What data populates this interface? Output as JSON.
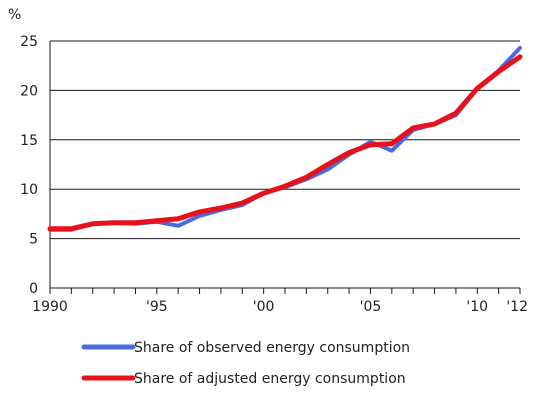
{
  "chart_data": {
    "type": "line",
    "title": "",
    "ylabel": "%",
    "xlabel": "",
    "ylim": [
      0,
      25
    ],
    "xlim": [
      1990,
      2012
    ],
    "y_ticks": [
      0,
      5,
      10,
      15,
      20,
      25
    ],
    "x_ticks": [
      {
        "value": 1990,
        "label": "1990"
      },
      {
        "value": 1995,
        "label": "'95"
      },
      {
        "value": 2000,
        "label": "'00"
      },
      {
        "value": 2005,
        "label": "'05"
      },
      {
        "value": 2010,
        "label": "'10"
      },
      {
        "value": 2012,
        "label": "'12"
      }
    ],
    "grid": "horizontal",
    "legend_position": "bottom",
    "x": [
      1990,
      1991,
      1992,
      1993,
      1994,
      1995,
      1996,
      1997,
      1998,
      1999,
      2000,
      2001,
      2002,
      2003,
      2004,
      2005,
      2006,
      2007,
      2008,
      2009,
      2010,
      2011,
      2012
    ],
    "series": [
      {
        "name": "Share of observed energy consumption",
        "color": "#4a6be0",
        "values": [
          5.9,
          5.9,
          6.5,
          6.6,
          6.5,
          6.7,
          6.3,
          7.3,
          7.9,
          8.4,
          9.6,
          10.2,
          11.0,
          12.0,
          13.5,
          14.8,
          13.9,
          16.0,
          16.6,
          17.5,
          20.2,
          22.0,
          24.3
        ]
      },
      {
        "name": "Share of adjusted energy consumption",
        "color": "#e8101a",
        "values": [
          6.0,
          6.0,
          6.5,
          6.6,
          6.6,
          6.8,
          7.0,
          7.7,
          8.1,
          8.6,
          9.6,
          10.3,
          11.2,
          12.5,
          13.7,
          14.5,
          14.6,
          16.2,
          16.6,
          17.7,
          20.2,
          21.9,
          23.4
        ]
      }
    ]
  }
}
